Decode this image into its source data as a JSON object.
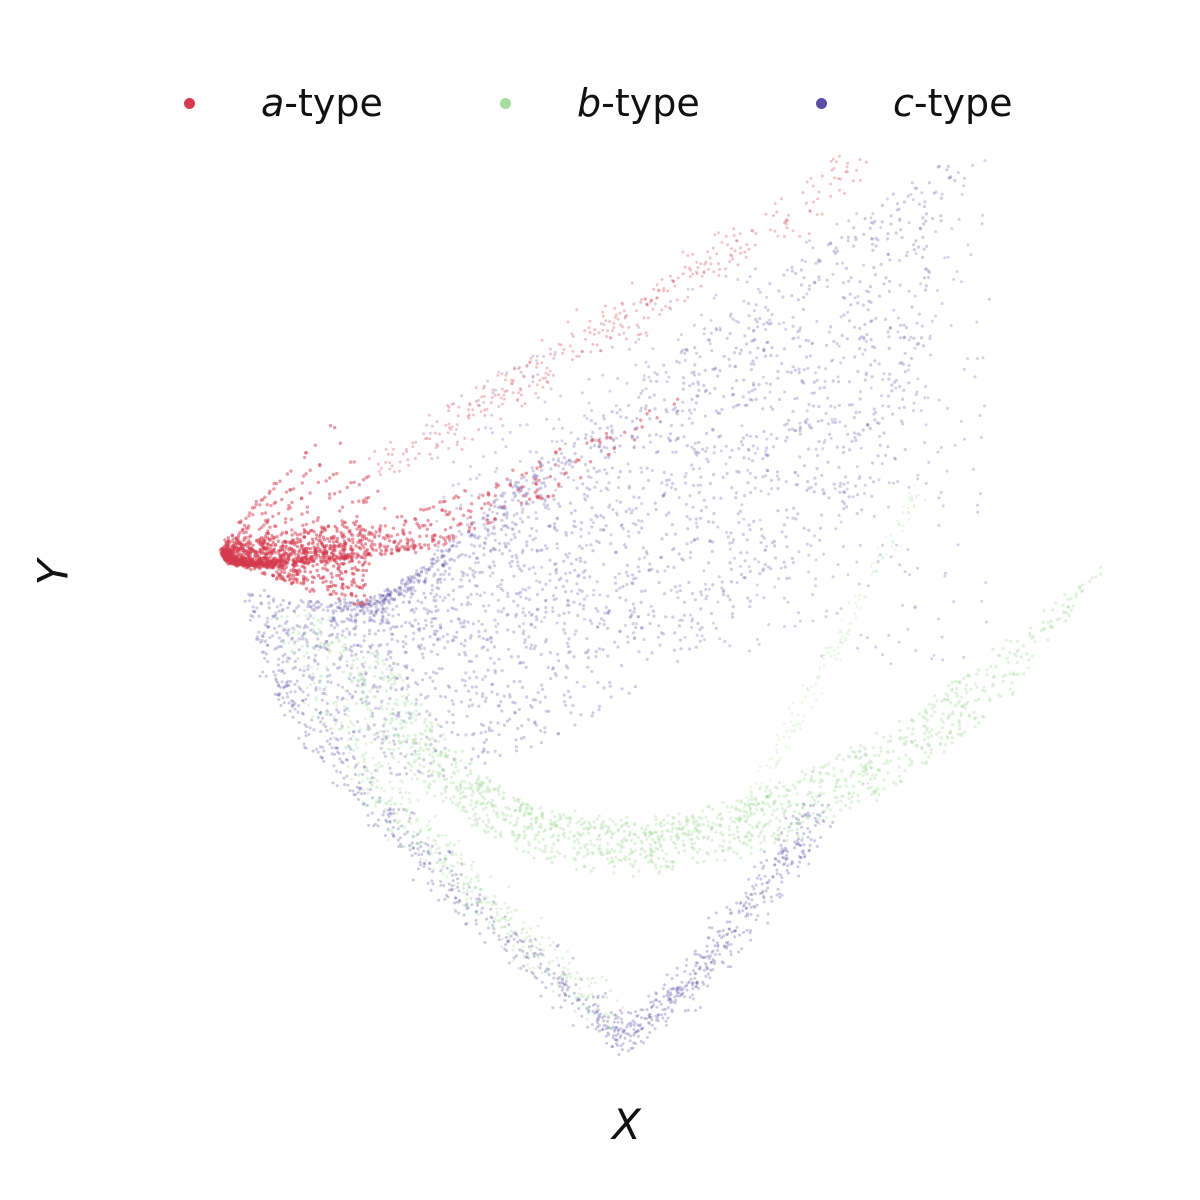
{
  "chart_data": {
    "type": "scatter",
    "title": "",
    "xlabel": "X",
    "ylabel": "Y",
    "xlim": [
      0,
      10
    ],
    "ylim": [
      0,
      10
    ],
    "grid": false,
    "axes_visible": false,
    "legend_placement": "top-center",
    "series": [
      {
        "name": "a-type",
        "name_italic": "a",
        "name_rest": "-type",
        "color": "#d63a4f",
        "description_points": "dense arc-shaped bands fanning out from the leftmost tip toward upper-right",
        "tip": [
          0.8,
          5.4
        ],
        "approx_count": 3000
      },
      {
        "name": "b-type",
        "name_italic": "b",
        "name_rest": "-type",
        "color": "#a8dba0",
        "tip": [
          4.7,
          1.1
        ],
        "approx_count": 3000
      },
      {
        "name": "c-type",
        "name_italic": "c",
        "name_rest": "-type",
        "color": "#5b4da3",
        "tip": [
          4.7,
          1.1
        ],
        "approx_count": 5000
      }
    ]
  }
}
